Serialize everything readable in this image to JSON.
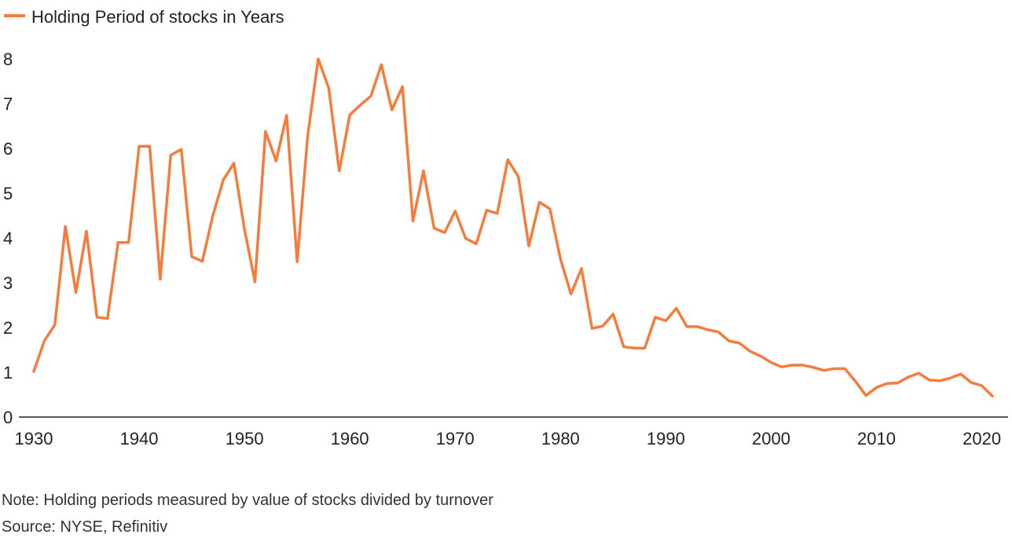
{
  "chart_data": {
    "type": "line",
    "legend": {
      "position": "top-left",
      "entries": [
        "Holding Period of stocks in Years"
      ]
    },
    "series": [
      {
        "name": "Holding Period of stocks in Years",
        "color": "#F47D3D",
        "x": [
          1930,
          1931,
          1932,
          1933,
          1934,
          1935,
          1936,
          1937,
          1938,
          1939,
          1940,
          1941,
          1942,
          1943,
          1944,
          1945,
          1946,
          1947,
          1948,
          1949,
          1950,
          1951,
          1952,
          1953,
          1954,
          1955,
          1956,
          1957,
          1958,
          1959,
          1960,
          1961,
          1962,
          1963,
          1964,
          1965,
          1966,
          1967,
          1968,
          1969,
          1970,
          1971,
          1972,
          1973,
          1974,
          1975,
          1976,
          1977,
          1978,
          1979,
          1980,
          1981,
          1982,
          1983,
          1984,
          1985,
          1986,
          1987,
          1988,
          1989,
          1990,
          1991,
          1992,
          1993,
          1994,
          1995,
          1996,
          1997,
          1998,
          1999,
          2000,
          2001,
          2002,
          2003,
          2004,
          2005,
          2006,
          2007,
          2008,
          2009,
          2010,
          2011,
          2012,
          2013,
          2014,
          2015,
          2016,
          2017,
          2018,
          2019,
          2020,
          2021
        ],
        "values": [
          1.02,
          1.7,
          2.06,
          4.26,
          2.78,
          4.15,
          2.23,
          2.2,
          3.9,
          3.9,
          6.05,
          6.05,
          3.08,
          5.85,
          5.98,
          3.58,
          3.48,
          4.5,
          5.3,
          5.67,
          4.2,
          3.02,
          6.38,
          5.72,
          6.74,
          3.47,
          6.28,
          8.0,
          7.35,
          5.5,
          6.75,
          6.97,
          7.17,
          7.87,
          6.86,
          7.38,
          4.38,
          5.5,
          4.22,
          4.12,
          4.6,
          3.99,
          3.87,
          4.62,
          4.55,
          5.75,
          5.37,
          3.82,
          4.8,
          4.65,
          3.53,
          2.75,
          3.32,
          1.98,
          2.03,
          2.3,
          1.57,
          1.54,
          1.54,
          2.23,
          2.15,
          2.43,
          2.02,
          2.02,
          1.95,
          1.9,
          1.7,
          1.65,
          1.47,
          1.36,
          1.22,
          1.12,
          1.16,
          1.16,
          1.11,
          1.04,
          1.08,
          1.08,
          0.8,
          0.48,
          0.66,
          0.75,
          0.76,
          0.89,
          0.98,
          0.83,
          0.81,
          0.87,
          0.96,
          0.77,
          0.7,
          0.47
        ]
      }
    ],
    "x_ticks": [
      "1930",
      "1940",
      "1950",
      "1960",
      "1970",
      "1980",
      "1990",
      "2000",
      "2010",
      "2020"
    ],
    "y_ticks": [
      "0",
      "1",
      "2",
      "3",
      "4",
      "5",
      "6",
      "7",
      "8"
    ],
    "xlim": [
      1930,
      2021
    ],
    "ylim": [
      0,
      8
    ],
    "grid": false
  },
  "notes": {
    "note": "Note: Holding periods measured by value of stocks divided by turnover",
    "source": "Source: NYSE, Refinitiv"
  }
}
